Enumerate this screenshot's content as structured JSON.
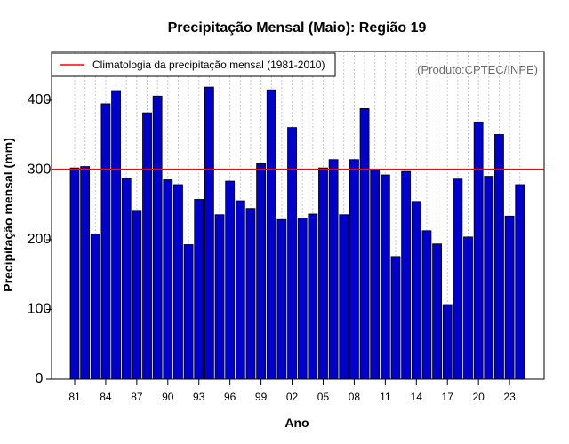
{
  "chart_data": {
    "type": "bar",
    "title": "Precipitação Mensal (Maio): Região 19",
    "xlabel": "Ano",
    "ylabel": "Precipitação mensal (mm)",
    "ylim": [
      0,
      470
    ],
    "yticks": [
      0,
      100,
      200,
      300,
      400
    ],
    "source_label": "(Produto:CPTEC/INPE)",
    "categories": [
      "1981",
      "1982",
      "1983",
      "1984",
      "1985",
      "1986",
      "1987",
      "1988",
      "1989",
      "1990",
      "1991",
      "1992",
      "1993",
      "1994",
      "1995",
      "1996",
      "1997",
      "1998",
      "1999",
      "2000",
      "2001",
      "2002",
      "2003",
      "2004",
      "2005",
      "2006",
      "2007",
      "2008",
      "2009",
      "2010",
      "2011",
      "2012",
      "2013",
      "2014",
      "2015",
      "2016",
      "2017",
      "2018",
      "2019",
      "2020",
      "2021",
      "2022",
      "2023",
      "2024"
    ],
    "xtick_labels": [
      {
        "index": 0,
        "label": "81"
      },
      {
        "index": 3,
        "label": "84"
      },
      {
        "index": 6,
        "label": "87"
      },
      {
        "index": 9,
        "label": "90"
      },
      {
        "index": 12,
        "label": "93"
      },
      {
        "index": 15,
        "label": "96"
      },
      {
        "index": 18,
        "label": "99"
      },
      {
        "index": 21,
        "label": "02"
      },
      {
        "index": 24,
        "label": "05"
      },
      {
        "index": 27,
        "label": "08"
      },
      {
        "index": 30,
        "label": "11"
      },
      {
        "index": 33,
        "label": "14"
      },
      {
        "index": 36,
        "label": "17"
      },
      {
        "index": 39,
        "label": "20"
      },
      {
        "index": 42,
        "label": "23"
      }
    ],
    "series": [
      {
        "name": "Precipitação mensal",
        "color": "#0000cd",
        "values": [
          303,
          305,
          208,
          395,
          414,
          288,
          241,
          382,
          406,
          286,
          279,
          193,
          258,
          419,
          236,
          284,
          256,
          245,
          309,
          415,
          229,
          361,
          231,
          237,
          303,
          315,
          236,
          315,
          388,
          301,
          293,
          176,
          298,
          255,
          213,
          194,
          107,
          287,
          204,
          369,
          291,
          351,
          234,
          279
        ]
      }
    ],
    "reference_line": {
      "label": "Climatologia da precipitação mensal (1981-2010)",
      "value": 301,
      "color": "#ff0000"
    },
    "legend_position": "top-left",
    "grid": "vertical-dotted"
  }
}
